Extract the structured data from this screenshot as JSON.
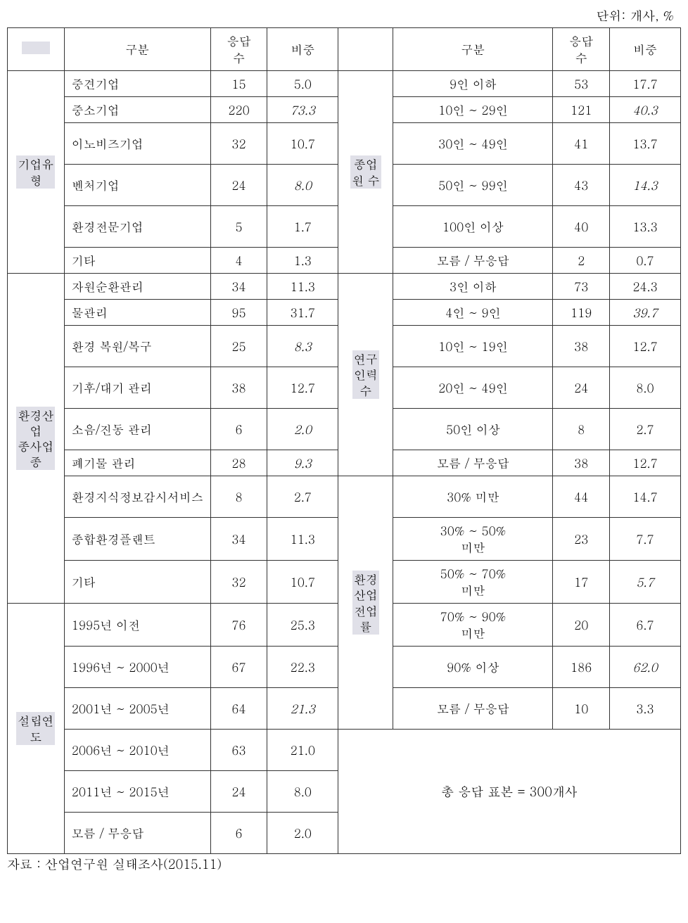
{
  "unit_label": "단위: 개사, %",
  "headers": {
    "gubun": "구분",
    "respondents": "응답\n수",
    "ratio": "비중"
  },
  "groups": {
    "company_type": {
      "label": "기업유\n형",
      "rows": [
        {
          "cat": "중견기업",
          "n": "15",
          "p": "5.0",
          "italic": false
        },
        {
          "cat": "중소기업",
          "n": "220",
          "p": "73.3",
          "italic": true
        },
        {
          "cat": "이노비즈기업",
          "n": "32",
          "p": "10.7",
          "italic": false
        },
        {
          "cat": "벤처기업",
          "n": "24",
          "p": "8.0",
          "italic": true
        },
        {
          "cat": "환경전문기업",
          "n": "5",
          "p": "1.7",
          "italic": false
        },
        {
          "cat": "기타",
          "n": "4",
          "p": "1.3",
          "italic": false
        }
      ]
    },
    "employees": {
      "label": "종업\n원 수",
      "rows": [
        {
          "cat": "9인 이하",
          "n": "53",
          "p": "17.7",
          "italic": false
        },
        {
          "cat": "10인 ~ 29인",
          "n": "121",
          "p": "40.3",
          "italic": true
        },
        {
          "cat": "30인 ~ 49인",
          "n": "41",
          "p": "13.7",
          "italic": false
        },
        {
          "cat": "50인 ~ 99인",
          "n": "43",
          "p": "14.3",
          "italic": true
        },
        {
          "cat": "100인 이상",
          "n": "40",
          "p": "13.3",
          "italic": false
        },
        {
          "cat": "모름 / 무응답",
          "n": "2",
          "p": "0.7",
          "italic": false
        }
      ]
    },
    "industry": {
      "label": "환경산\n업\n종사업\n종",
      "rows": [
        {
          "cat": "자원순환관리",
          "n": "34",
          "p": "11.3",
          "italic": false
        },
        {
          "cat": "물관리",
          "n": "95",
          "p": "31.7",
          "italic": false
        },
        {
          "cat": "환경 복원/복구",
          "n": "25",
          "p": "8.3",
          "italic": true
        },
        {
          "cat": "기후/대기 관리",
          "n": "38",
          "p": "12.7",
          "italic": false
        },
        {
          "cat": "소음/진동 관리",
          "n": "6",
          "p": "2.0",
          "italic": true
        },
        {
          "cat": "폐기물 관리",
          "n": "28",
          "p": "9.3",
          "italic": true
        },
        {
          "cat": "환경지식정보감시서비스",
          "n": "8",
          "p": "2.7",
          "italic": false
        },
        {
          "cat": "종합환경플랜트",
          "n": "34",
          "p": "11.3",
          "italic": false
        },
        {
          "cat": "기타",
          "n": "32",
          "p": "10.7",
          "italic": false
        }
      ]
    },
    "rnd_staff": {
      "label": "연구\n인력\n수",
      "rows": [
        {
          "cat": "3인 이하",
          "n": "73",
          "p": "24.3",
          "italic": false
        },
        {
          "cat": "4인 ~ 9인",
          "n": "119",
          "p": "39.7",
          "italic": true
        },
        {
          "cat": "10인 ~ 19인",
          "n": "38",
          "p": "12.7",
          "italic": false
        },
        {
          "cat": "20인 ~ 49인",
          "n": "24",
          "p": "8.0",
          "italic": false
        },
        {
          "cat": "50인 이상",
          "n": "8",
          "p": "2.7",
          "italic": false
        },
        {
          "cat": "모름 / 무응답",
          "n": "38",
          "p": "12.7",
          "italic": false
        }
      ]
    },
    "env_ratio": {
      "label": "환경\n산업\n전업\n률",
      "rows": [
        {
          "cat": "30% 미만",
          "n": "44",
          "p": "14.7",
          "italic": false
        },
        {
          "cat": "30% ~ 50%\n미만",
          "n": "23",
          "p": "7.7",
          "italic": false
        },
        {
          "cat": "50% ~ 70%\n미만",
          "n": "17",
          "p": "5.7",
          "italic": true
        },
        {
          "cat": "70% ~ 90%\n미만",
          "n": "20",
          "p": "6.7",
          "italic": false
        },
        {
          "cat": "90% 이상",
          "n": "186",
          "p": "62.0",
          "italic": true
        },
        {
          "cat": "모름 / 무응답",
          "n": "10",
          "p": "3.3",
          "italic": false
        }
      ]
    },
    "founded": {
      "label": "설립연\n도",
      "rows": [
        {
          "cat": "1995년 이전",
          "n": "76",
          "p": "25.3",
          "italic": false
        },
        {
          "cat": " 1996년 ~ 2000년",
          "n": "67",
          "p": "22.3",
          "italic": false
        },
        {
          "cat": " 2001년 ~ 2005년",
          "n": "64",
          "p": "21.3",
          "italic": true
        },
        {
          "cat": " 2006년 ~ 2010년",
          "n": "63",
          "p": "21.0",
          "italic": false
        },
        {
          "cat": " 2011년 ~ 2015년",
          "n": "24",
          "p": "8.0",
          "italic": false
        },
        {
          "cat": "모름 / 무응답",
          "n": "6",
          "p": "2.0",
          "italic": false
        }
      ]
    }
  },
  "total_note": "총 응답 표본 = 300개사",
  "source": "자료 : 산업연구원 실태조사(2015.11)"
}
